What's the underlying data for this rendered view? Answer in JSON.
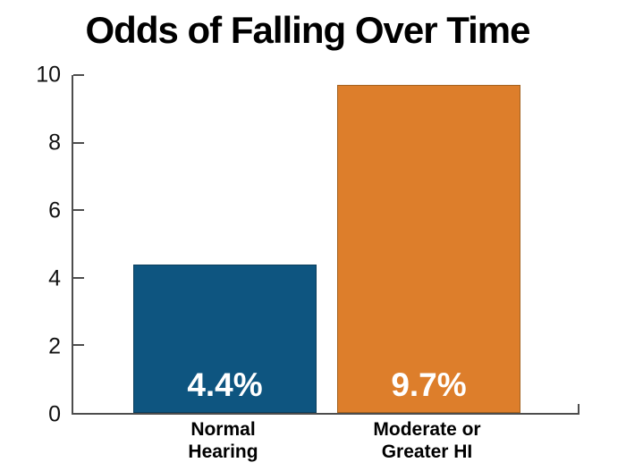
{
  "chart_data": {
    "type": "bar",
    "title": "Odds of Falling Over Time",
    "categories": [
      "Normal\nHearing",
      "Moderate or\nGreater HI"
    ],
    "values": [
      4.4,
      9.7
    ],
    "value_labels": [
      "4.4%",
      "9.7%"
    ],
    "bar_colors": [
      "#0E5580",
      "#DD7E2B"
    ],
    "bar_border_colors": [
      "#0B3E5D",
      "#A2611F"
    ],
    "value_label_color": "#FFFFFF",
    "axis_color": "#4D4D4D",
    "text_color": "#000000",
    "yticks": [
      0,
      2,
      4,
      6,
      8,
      10
    ],
    "ylim": [
      0,
      10
    ],
    "xlabel": "",
    "ylabel": "",
    "grid": false,
    "legend": false
  }
}
